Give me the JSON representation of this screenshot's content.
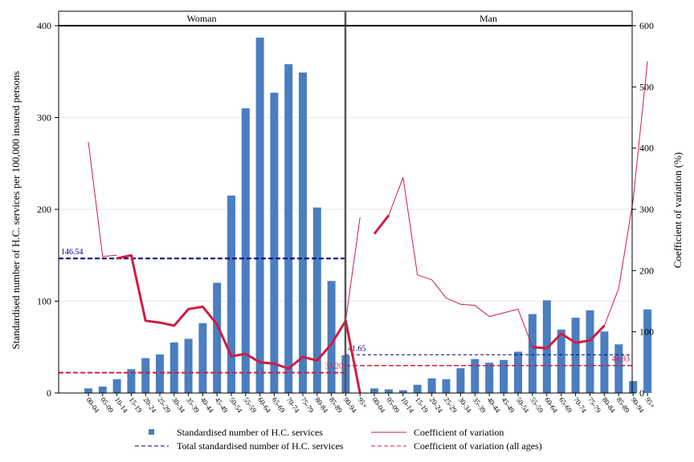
{
  "chart_data": {
    "type": "bar",
    "title": "",
    "ylabel_left": "Standardised number of H.C. services per 100,000 insured persons",
    "ylabel_right": "Coefficient of variation (%)",
    "xlabel": "",
    "ylim_left": [
      0,
      400
    ],
    "ylim_right": [
      0,
      600
    ],
    "yticks_left": [
      0,
      100,
      200,
      300,
      400
    ],
    "yticks_right": [
      0,
      100,
      200,
      300,
      400,
      500,
      600
    ],
    "categories": [
      "00-04",
      "05-09",
      "10-14",
      "15-19",
      "20-24",
      "25-29",
      "30-34",
      "35-39",
      "40-44",
      "45-49",
      "50-54",
      "55-59",
      "60-64",
      "65-69",
      "70-74",
      "75-79",
      "80-84",
      "85-89",
      "90-94",
      "95+"
    ],
    "grid": "horizontal",
    "legend_position": "bottom",
    "legend": {
      "bars": "Standardised number of H.C. services",
      "total": "Total standardised number of H.C. services",
      "cv": "Coefficient of variation",
      "cv_all": "Coefficient of variation (all ages)"
    },
    "colors": {
      "bars": "#4a7ebf",
      "total": "#00007a",
      "cv": "#d01c42"
    },
    "panels": [
      {
        "name": "Woman",
        "bars": [
          5,
          7,
          15,
          26,
          38,
          42,
          55,
          59,
          76,
          120,
          215,
          310,
          387,
          327,
          358,
          349,
          202,
          122,
          41,
          0
        ],
        "total": 146.54,
        "total_label": "146.54",
        "cv_all": 33.2,
        "cv_all_label": "33.20",
        "cv_bold": [
          null,
          null,
          220,
          225,
          118,
          115,
          110,
          137,
          141,
          112,
          60,
          64,
          50,
          48,
          40,
          59,
          53,
          80,
          118,
          0
        ],
        "cv_thin": [
          410,
          223,
          225,
          null,
          null,
          null,
          null,
          null,
          null,
          null,
          null,
          null,
          null,
          null,
          null,
          null,
          null,
          null,
          118,
          287
        ]
      },
      {
        "name": "Man",
        "bars": [
          5,
          4,
          3,
          9,
          16,
          15,
          27,
          37,
          33,
          36,
          45,
          86,
          101,
          69,
          82,
          90,
          67,
          53,
          13,
          91
        ],
        "total": 41.65,
        "total_label": "41.65",
        "cv_all": 44.93,
        "cv_all_label": "44.93",
        "cv_bold": [
          260,
          290,
          null,
          null,
          null,
          null,
          null,
          null,
          null,
          null,
          null,
          75,
          73,
          97,
          82,
          86,
          110,
          null,
          null,
          null
        ],
        "cv_thin": [
          null,
          290,
          352,
          193,
          185,
          155,
          145,
          143,
          125,
          131,
          137,
          75,
          null,
          null,
          null,
          null,
          110,
          171,
          315,
          542
        ]
      }
    ]
  }
}
